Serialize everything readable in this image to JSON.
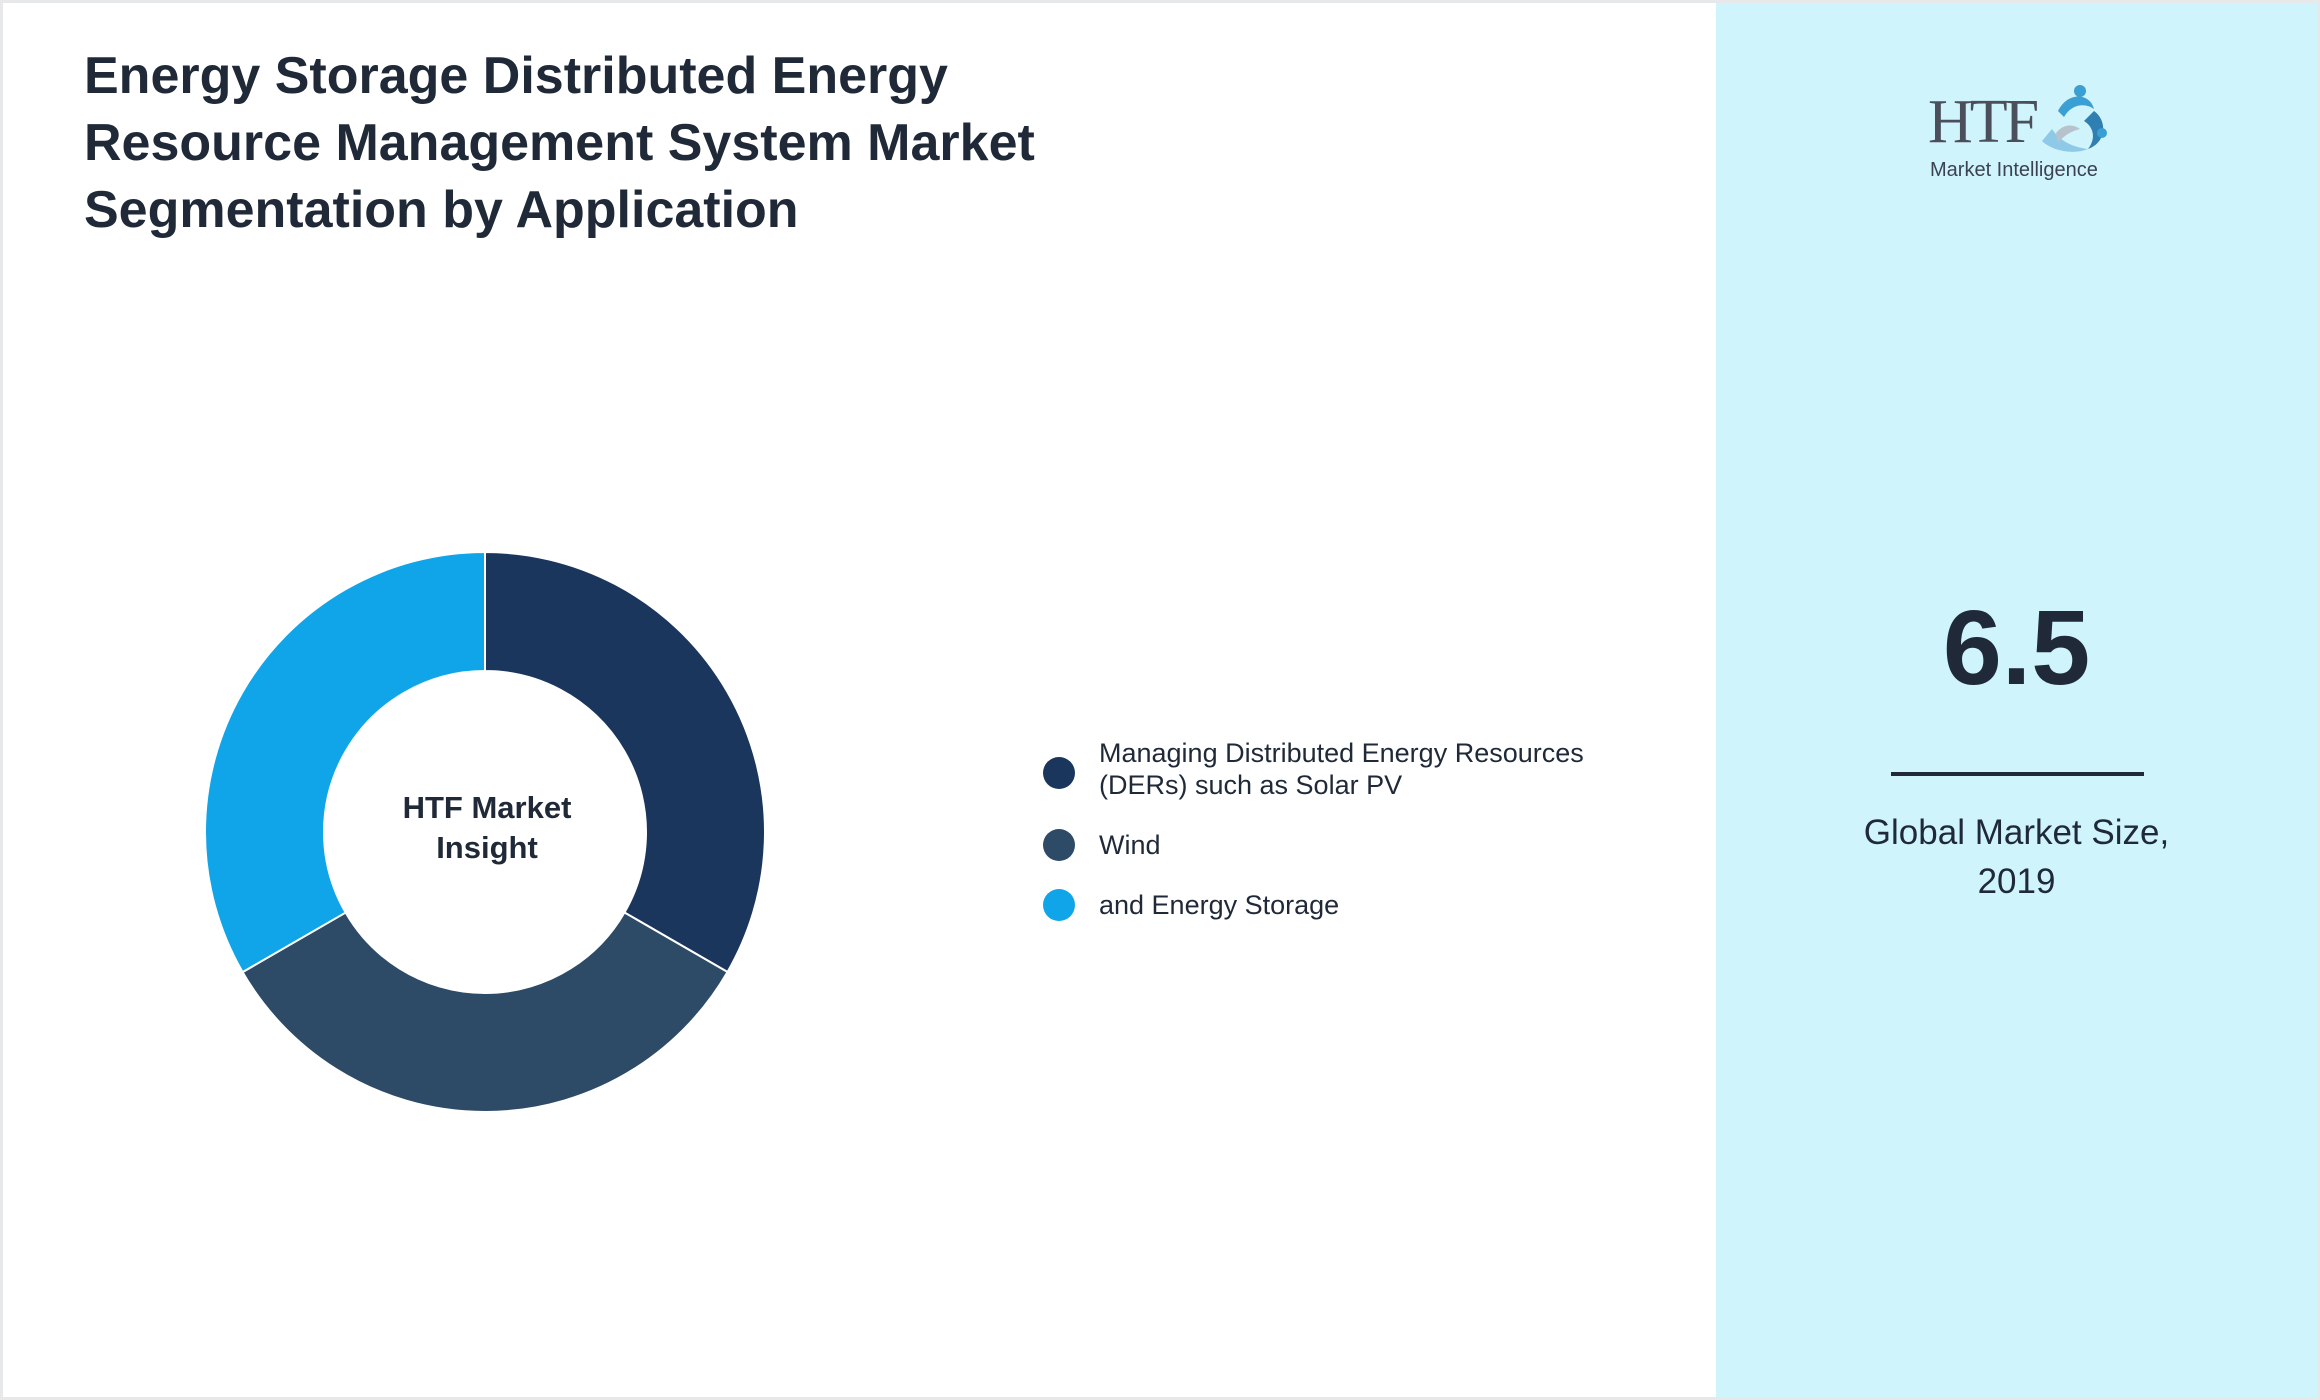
{
  "title": "Energy Storage Distributed Energy Resource Management System Market Segmentation by Application",
  "chart_data": {
    "type": "pie",
    "style": "donut",
    "center_label": [
      "HTF Market",
      "Insight"
    ],
    "slices": [
      {
        "label": "Managing Distributed Energy Resources (DERs) such as Solar PV",
        "value": 33.33,
        "color": "#1b365d"
      },
      {
        "label": "Wind",
        "value": 33.33,
        "color": "#2d4a67"
      },
      {
        "label": "and Energy Storage",
        "value": 33.34,
        "color": "#10a5e8"
      }
    ],
    "legend_position": "right"
  },
  "legend": {
    "items": [
      {
        "label_line1": "Managing Distributed Energy Resources",
        "label_line2": "(DERs) such as Solar PV",
        "color": "#1b365d"
      },
      {
        "label_line1": "Wind",
        "label_line2": "",
        "color": "#2d4a67"
      },
      {
        "label_line1": "and Energy Storage",
        "label_line2": "",
        "color": "#10a5e8"
      }
    ]
  },
  "sidebar": {
    "logo_text": "HTF",
    "logo_subtitle": "Market Intelligence",
    "market_size_value": "6.5",
    "caption_line1": "Global Market Size,",
    "caption_line2": "2019"
  },
  "colors": {
    "sidebar_bg": "#cff4fc",
    "text_dark": "#1f2937",
    "logo_accent": "#3b9fd3"
  }
}
